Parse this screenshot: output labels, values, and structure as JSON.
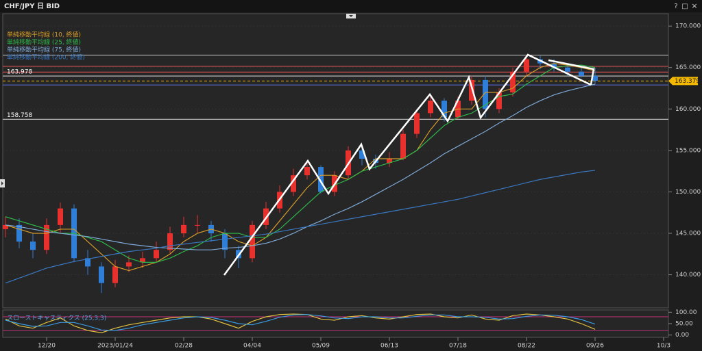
{
  "chart_data": {
    "type": "candlestick",
    "title": "CHF/JPY 日 BID",
    "window_buttons": [
      "?",
      "□",
      "×"
    ],
    "categories": [
      null,
      null,
      null,
      "12/20",
      null,
      null,
      null,
      null,
      "2023/01/24",
      null,
      null,
      null,
      null,
      "02/28",
      null,
      null,
      null,
      null,
      "04/04",
      null,
      null,
      null,
      null,
      "05/09",
      null,
      null,
      null,
      null,
      "06/13",
      null,
      null,
      null,
      null,
      "07/18",
      null,
      null,
      null,
      null,
      "08/22",
      null,
      null,
      null,
      null,
      "09/26",
      null,
      null,
      null,
      null,
      "10/3"
    ],
    "open": [
      145.5,
      146,
      144,
      143,
      146,
      148,
      142,
      141,
      139,
      141,
      141.5,
      142,
      143,
      145,
      146,
      146,
      145,
      143,
      142,
      146,
      148,
      150,
      152,
      153,
      150,
      152,
      155,
      154,
      153.5,
      154,
      157,
      159.5,
      161,
      159,
      161,
      163.5,
      160,
      162,
      164.5,
      166,
      165.5,
      165,
      164.5,
      164,
      null,
      null,
      null,
      null,
      null
    ],
    "high": [
      147,
      146.8,
      145,
      146.8,
      148.7,
      148.5,
      143,
      141.5,
      141.8,
      142.3,
      142.8,
      144,
      145.8,
      147,
      147.2,
      146.5,
      145.5,
      143.5,
      146.5,
      148.8,
      150.8,
      152.8,
      153.8,
      153.2,
      152.5,
      155.5,
      155.6,
      154.5,
      154.8,
      157.5,
      160,
      161.6,
      161.3,
      161.5,
      164,
      164,
      162.5,
      165,
      166.5,
      166.4,
      166,
      165.3,
      165,
      165,
      null,
      null,
      null,
      null,
      null
    ],
    "low": [
      144.5,
      143.2,
      142,
      142.5,
      145,
      141.5,
      140,
      137.8,
      138.5,
      140.3,
      140.8,
      141.5,
      142.5,
      144.5,
      145,
      144,
      142,
      140.8,
      141.5,
      145.5,
      147.5,
      149.5,
      151.5,
      149.8,
      149.5,
      151.5,
      153.2,
      152.8,
      153,
      153.8,
      156.5,
      159,
      158.5,
      158.8,
      160.5,
      159,
      159.5,
      161.5,
      164,
      164.8,
      164.5,
      164,
      163.8,
      163,
      null,
      null,
      null,
      null,
      null
    ],
    "close": [
      146,
      144,
      143,
      146,
      148,
      142,
      141,
      139,
      141,
      141.5,
      142,
      143,
      145,
      146,
      146,
      145,
      143,
      142,
      146,
      148,
      150,
      152,
      153,
      150,
      152,
      155,
      154,
      153.5,
      154,
      157,
      159.5,
      161,
      159,
      161,
      163.5,
      160,
      162,
      164.5,
      166,
      165.5,
      165,
      164.5,
      164,
      163.4,
      null,
      null,
      null,
      null,
      null
    ],
    "up_color": "#e8312d",
    "down_color": "#2f7fd8",
    "ylim": [
      136,
      171.5
    ],
    "yticks": [
      {
        "value": 140,
        "label": "140.000"
      },
      {
        "value": 145,
        "label": "145.000"
      },
      {
        "value": 150,
        "label": "150.000"
      },
      {
        "value": 155,
        "label": "155.000"
      },
      {
        "value": 160,
        "label": "160.000"
      },
      {
        "value": 165,
        "label": "165.000"
      },
      {
        "value": 170,
        "label": "170.000"
      }
    ],
    "grid": true,
    "ma_series": [
      {
        "name": "単純移動平均線 (10, 終値)",
        "color": "#d39b2a",
        "values": [
          146,
          145.5,
          145,
          145,
          145.5,
          145.5,
          144,
          142.5,
          141,
          140.5,
          141,
          141.5,
          142.5,
          144,
          145,
          145.5,
          145,
          144,
          143.5,
          144.5,
          146.5,
          148.5,
          150.5,
          152,
          152,
          151.5,
          152.5,
          154,
          154,
          154,
          155,
          157.5,
          159.5,
          160,
          160,
          162,
          162,
          162.5,
          164,
          165,
          165.5,
          165.3,
          165,
          164.6,
          null,
          null,
          null,
          null,
          null
        ]
      },
      {
        "name": "単純移動平均線 (25, 終値)",
        "color": "#2fb84a",
        "values": [
          147,
          146.5,
          146,
          145.5,
          145,
          145,
          144.5,
          144,
          143,
          142,
          141.5,
          141.5,
          142,
          142.8,
          143.5,
          144.5,
          145,
          145,
          144.5,
          144.5,
          145.5,
          147,
          148.5,
          150,
          150.8,
          151.5,
          152.5,
          153,
          153.5,
          154,
          155,
          156.5,
          158,
          159,
          159.5,
          160.5,
          161.5,
          161.8,
          163,
          164,
          165,
          165.2,
          165.3,
          165,
          null,
          null,
          null,
          null,
          null
        ]
      },
      {
        "name": "単純移動平均線 (75, 終値)",
        "color": "#7fa9d6",
        "values": [
          146,
          145.8,
          145.5,
          145.2,
          145,
          144.8,
          144.6,
          144.3,
          144,
          143.7,
          143.5,
          143.3,
          143.2,
          143.1,
          143,
          143,
          143.2,
          143.3,
          143.5,
          143.8,
          144.3,
          145,
          145.8,
          146.5,
          147.3,
          148,
          148.8,
          149.7,
          150.6,
          151.5,
          152.5,
          153.5,
          154.6,
          155.5,
          156.4,
          157.3,
          158.3,
          159.2,
          160.2,
          161,
          161.7,
          162.2,
          162.6,
          163,
          null,
          null,
          null,
          null,
          null
        ]
      },
      {
        "name": "単純移動平均線 (200, 終値)",
        "color": "#3a78c2",
        "values": [
          139,
          139.6,
          140.2,
          140.8,
          141.2,
          141.6,
          141.9,
          142.2,
          142.5,
          142.8,
          143,
          143.2,
          143.5,
          143.7,
          143.9,
          144.1,
          144.3,
          144.5,
          144.7,
          144.9,
          145.2,
          145.5,
          145.8,
          146.1,
          146.4,
          146.7,
          147,
          147.3,
          147.6,
          147.9,
          148.2,
          148.5,
          148.8,
          149.1,
          149.5,
          149.9,
          150.3,
          150.7,
          151.1,
          151.5,
          151.8,
          152.1,
          152.4,
          152.6,
          null,
          null,
          null,
          null,
          null
        ]
      }
    ],
    "hlines": [
      {
        "value": 166.5,
        "color": "#bbbbbb"
      },
      {
        "value": 165.15,
        "color": "#d05050"
      },
      {
        "value": 164.45,
        "color": "#d05050"
      },
      {
        "value": 163.978,
        "color": "#bbbbbb",
        "show_label": true
      },
      {
        "value": 162.9,
        "color": "#5a6ad0"
      },
      {
        "value": 158.758,
        "color": "#bbbbbb",
        "show_label": true
      }
    ],
    "current_price": 163.379,
    "current_price_color": "#f5b800",
    "stochastic": {
      "title": "スローストキャスティクス (25,3,3)",
      "ylim": [
        -10,
        110
      ],
      "yticks": [
        {
          "value": 0,
          "label": "0.00"
        },
        {
          "value": 50,
          "label": "50.00"
        },
        {
          "value": 100,
          "label": "100.00"
        }
      ],
      "levels": [
        20,
        80
      ],
      "level_color": "#c0307a",
      "series": [
        {
          "color": "#e0c040",
          "values": [
            70,
            40,
            30,
            55,
            75,
            40,
            20,
            10,
            30,
            45,
            55,
            65,
            75,
            80,
            80,
            70,
            50,
            30,
            60,
            80,
            90,
            92,
            90,
            70,
            65,
            80,
            85,
            75,
            70,
            80,
            90,
            92,
            80,
            75,
            88,
            70,
            65,
            85,
            92,
            88,
            80,
            70,
            50,
            25,
            null,
            null,
            null,
            null,
            null
          ]
        },
        {
          "color": "#3a9ae0",
          "values": [
            65,
            50,
            38,
            40,
            55,
            55,
            40,
            22,
            20,
            30,
            45,
            55,
            65,
            75,
            80,
            77,
            65,
            50,
            45,
            60,
            78,
            88,
            90,
            84,
            75,
            72,
            80,
            80,
            75,
            75,
            82,
            88,
            88,
            80,
            80,
            78,
            70,
            72,
            82,
            88,
            87,
            80,
            68,
            48,
            null,
            null,
            null,
            null,
            null
          ]
        }
      ]
    }
  }
}
